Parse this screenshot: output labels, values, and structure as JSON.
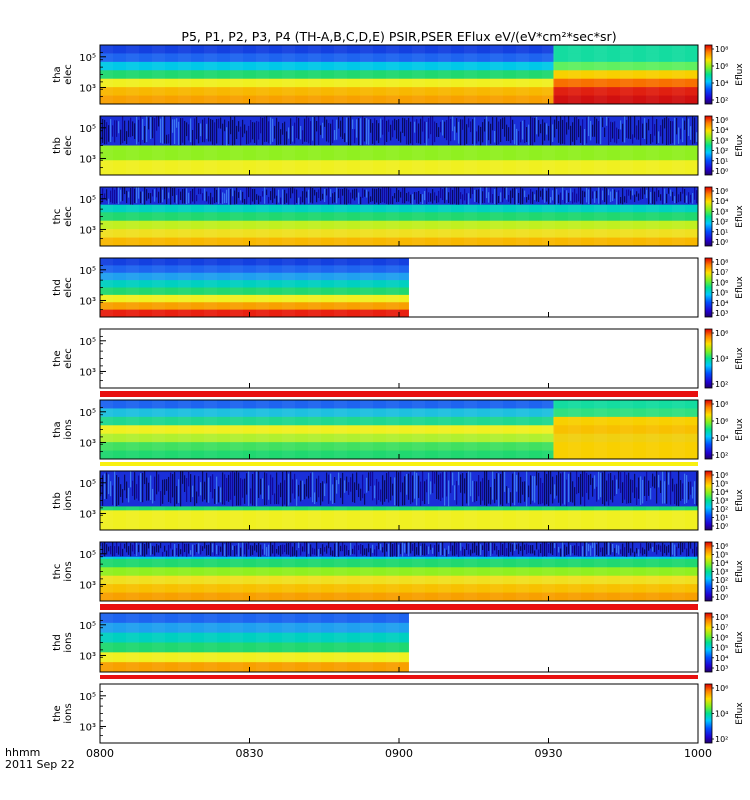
{
  "title": "P5, P1, P2, P3, P4 (TH-A,B,C,D,E) PSIR,PSER EFlux eV/(eV*cm²*sec*sr)",
  "footer": {
    "time_format": "hhmm",
    "date": "2011 Sep 22"
  },
  "chart_data": {
    "type": "heatmap",
    "x_ticks": [
      "0800",
      "0830",
      "0900",
      "0930",
      "1000"
    ],
    "x_range": [
      "0800",
      "1000"
    ],
    "colorbar_label": "Eflux",
    "panels": [
      {
        "name_line1": "tha",
        "name_line2": "elec",
        "y_ticks": [
          "10⁵",
          "10³"
        ],
        "colorbar_ticks": [
          "10⁸",
          "10⁶",
          "10⁴",
          "10²"
        ],
        "data_end": "1000",
        "state_change": "0931",
        "bands_before": [
          "#1440e0",
          "#1e64f0",
          "#00c8e8",
          "#20d870",
          "#f0f020",
          "#f8b800",
          "#f8a000"
        ],
        "bands_after": [
          "#14dca0",
          "#14dca0",
          "#60f060",
          "#f8d000",
          "#f87000",
          "#e02010",
          "#d01010"
        ]
      },
      {
        "name_line1": "thb",
        "name_line2": "elec",
        "y_ticks": [
          "10⁵",
          "10³"
        ],
        "colorbar_ticks": [
          "10⁶",
          "10⁴",
          "10³",
          "10²",
          "10¹",
          "10⁰"
        ],
        "data_end": "1000",
        "noise_rows": 0.5,
        "bands_before": [
          "#00c8e8",
          "#20d870",
          "#90f020",
          "#f0f020"
        ]
      },
      {
        "name_line1": "thc",
        "name_line2": "elec",
        "y_ticks": [
          "10⁵",
          "10³"
        ],
        "colorbar_ticks": [
          "10⁶",
          "10⁴",
          "10³",
          "10²",
          "10¹",
          "10⁰"
        ],
        "data_end": "1000",
        "noise_rows": 0.3,
        "bands_before": [
          "#1e64f0",
          "#20a0f0",
          "#00d0c0",
          "#20d870",
          "#c0f020",
          "#f0e020",
          "#f8b800"
        ]
      },
      {
        "name_line1": "thd",
        "name_line2": "elec",
        "y_ticks": [
          "10⁵",
          "10³"
        ],
        "colorbar_ticks": [
          "10⁸",
          "10⁷",
          "10⁶",
          "10⁵",
          "10⁴",
          "10³"
        ],
        "data_end": "0902",
        "bands_before": [
          "#1440e0",
          "#1e64f0",
          "#20a0f0",
          "#00d0c0",
          "#20d870",
          "#f0f020",
          "#f8a000",
          "#e82010"
        ]
      },
      {
        "name_line1": "the",
        "name_line2": "elec",
        "y_ticks": [
          "10⁵",
          "10³"
        ],
        "colorbar_ticks": [
          "10⁶",
          "10⁴",
          "10²"
        ],
        "data_end": "0800",
        "bottom_strip": "#e81010",
        "bands_before": []
      },
      {
        "name_line1": "tha",
        "name_line2": "ions",
        "y_ticks": [
          "10⁵",
          "10³"
        ],
        "colorbar_ticks": [
          "10⁸",
          "10⁶",
          "10⁴",
          "10²"
        ],
        "data_end": "1000",
        "state_change": "0931",
        "top_strip": "#e81010",
        "bottom_strip": "#f8f010",
        "bands_before": [
          "#1e64f0",
          "#1ec0e0",
          "#20d890",
          "#f0f020",
          "#b0f030",
          "#40e060",
          "#20d870"
        ],
        "bands_after": [
          "#14dca0",
          "#30e080",
          "#f8d000",
          "#f8c000",
          "#f0d010",
          "#f8d000",
          "#f8d000"
        ]
      },
      {
        "name_line1": "thb",
        "name_line2": "ions",
        "y_ticks": [
          "10⁵",
          "10³"
        ],
        "colorbar_ticks": [
          "10⁶",
          "10⁵",
          "10⁴",
          "10³",
          "10²",
          "10¹",
          "10⁰"
        ],
        "data_end": "1000",
        "noise_rows": 0.6,
        "bands_before": [
          "#00c8e8",
          "#20d870",
          "#f0f020"
        ]
      },
      {
        "name_line1": "thc",
        "name_line2": "ions",
        "y_ticks": [
          "10⁵",
          "10³"
        ],
        "colorbar_ticks": [
          "10⁶",
          "10⁵",
          "10⁴",
          "10³",
          "10²",
          "10¹",
          "10⁰"
        ],
        "data_end": "1000",
        "noise_rows": 0.25,
        "bottom_strip": "#e81010",
        "bands_before": [
          "#1e64f0",
          "#00c8e8",
          "#20d870",
          "#90f020",
          "#f0e020",
          "#f8c000",
          "#f8a000"
        ]
      },
      {
        "name_line1": "thd",
        "name_line2": "ions",
        "y_ticks": [
          "10⁵",
          "10³"
        ],
        "colorbar_ticks": [
          "10⁸",
          "10⁷",
          "10⁶",
          "10⁵",
          "10⁴",
          "10³"
        ],
        "data_end": "0902",
        "top_strip": "#e81010",
        "bottom_strip": "#e81010",
        "bands_before": [
          "#1e64f0",
          "#20a0f0",
          "#00d0c0",
          "#20d870",
          "#f0f020",
          "#f8a000"
        ]
      },
      {
        "name_line1": "the",
        "name_line2": "ions",
        "y_ticks": [
          "10⁵",
          "10³"
        ],
        "colorbar_ticks": [
          "10⁶",
          "10⁴",
          "10²"
        ],
        "data_end": "0800",
        "bands_before": []
      }
    ]
  }
}
